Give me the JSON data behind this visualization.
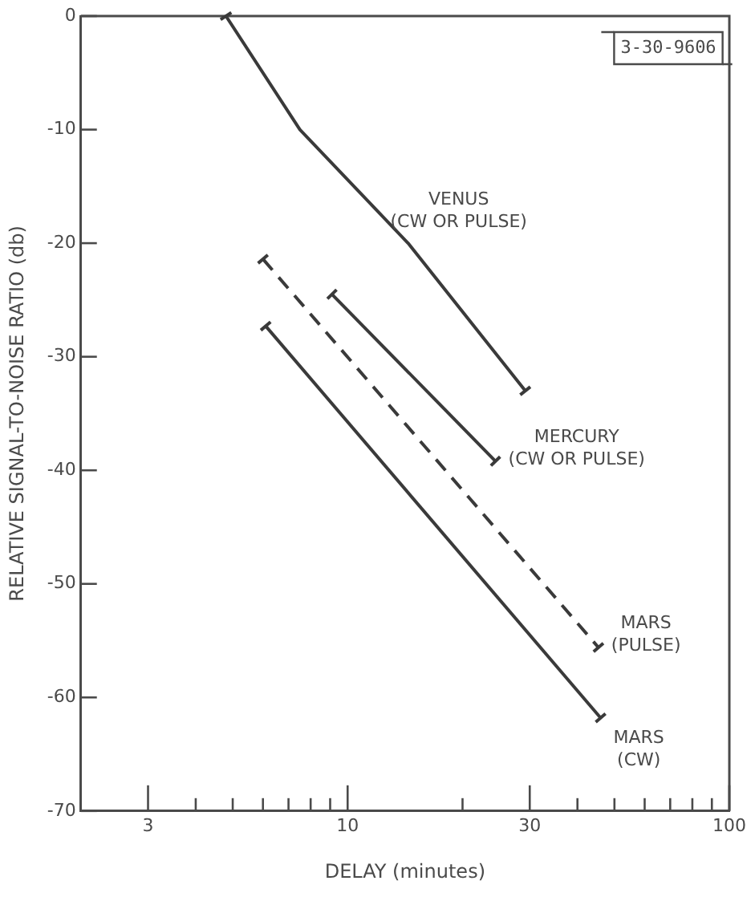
{
  "chart_data": {
    "type": "line",
    "xlabel": "DELAY (minutes)",
    "ylabel": "RELATIVE SIGNAL-TO-NOISE RATIO (db)",
    "log": "x",
    "xlim": [
      2,
      100
    ],
    "xticks": [
      3,
      {
        "value": 4,
        "label": null
      },
      {
        "value": 5,
        "label": null
      },
      {
        "value": 6,
        "label": null
      },
      {
        "value": 7,
        "label": null
      },
      {
        "value": 8,
        "label": null
      },
      {
        "value": 9,
        "label": null
      },
      10,
      {
        "value": 20,
        "label": null
      },
      30,
      {
        "value": 40,
        "label": null
      },
      {
        "value": 50,
        "label": null
      },
      {
        "value": 60,
        "label": null
      },
      {
        "value": 70,
        "label": null
      },
      {
        "value": 80,
        "label": null
      },
      {
        "value": 90,
        "label": null
      },
      100
    ],
    "ylim": [
      -70,
      0
    ],
    "yticks": [
      -70,
      -60,
      -50,
      -40,
      -30,
      -20,
      -10,
      0
    ],
    "grid": false,
    "legend": false,
    "series": [
      {
        "name": "VENUS (CW OR PULSE)",
        "color": "#3a3a3a",
        "marker": "cross",
        "x": [
          4.8,
          7.5,
          14.4,
          29.2
        ],
        "values": [
          0,
          -10,
          -20,
          -33
        ]
      },
      {
        "name": "MERCURY (CW OR PULSE)",
        "color": "#3a3a3a",
        "marker": "cross",
        "x": [
          9.1,
          24.4
        ],
        "values": [
          -24.5,
          -39.2
        ]
      },
      {
        "name": "MARS (PULSE)",
        "color": "#3a3a3a",
        "line_style": "dashed",
        "marker": "cross",
        "x": [
          6.0,
          45.4
        ],
        "values": [
          -21.4,
          -55.6
        ]
      },
      {
        "name": "MARS (CW)",
        "color": "#3a3a3a",
        "marker": "cross",
        "x": [
          6.1,
          46
        ],
        "values": [
          -27.3,
          -61.8
        ]
      }
    ],
    "annotations": [
      "3-30-9606"
    ]
  }
}
